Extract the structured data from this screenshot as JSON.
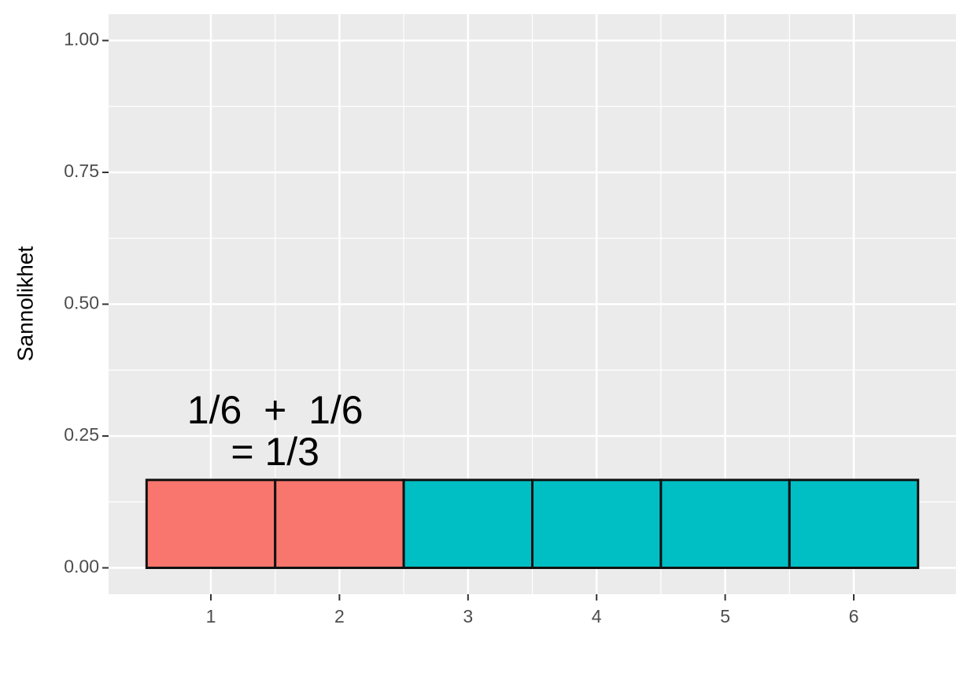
{
  "chart_data": {
    "type": "bar",
    "ylabel": "Sannolikhet",
    "annotation": [
      "1/6  +  1/6",
      "= 1/3"
    ],
    "categories": [
      "1",
      "2",
      "3",
      "4",
      "5",
      "6"
    ],
    "values": [
      0.1667,
      0.1667,
      0.1667,
      0.1667,
      0.1667,
      0.1667
    ],
    "colors": [
      "#F8766D",
      "#F8766D",
      "#00BFC4",
      "#00BFC4",
      "#00BFC4",
      "#00BFC4"
    ],
    "ylim": [
      -0.05,
      1.05
    ],
    "yticks": [
      {
        "value": 0,
        "label": "0.00"
      },
      {
        "value": 0.25,
        "label": "0.25"
      },
      {
        "value": 0.5,
        "label": "0.50"
      },
      {
        "value": 0.75,
        "label": "0.75"
      },
      {
        "value": 1,
        "label": "1.00"
      }
    ],
    "grid": true
  }
}
